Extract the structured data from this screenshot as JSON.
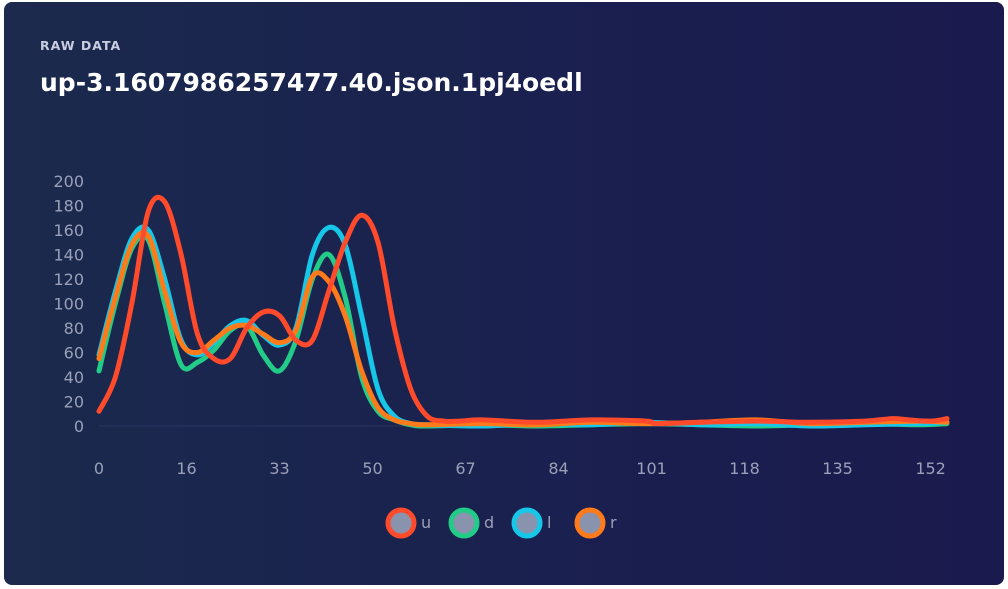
{
  "header": {
    "eyebrow": "RAW DATA",
    "title": "up-3.1607986257477.40.json.1pj4oedl"
  },
  "chart_data": {
    "type": "line",
    "title": "up-3.1607986257477.40.json.1pj4oedl",
    "xlabel": "",
    "ylabel": "",
    "xlim": [
      0,
      155
    ],
    "ylim": [
      0,
      200
    ],
    "x_ticks": [
      0,
      16,
      33,
      50,
      67,
      84,
      101,
      118,
      135,
      152
    ],
    "y_ticks": [
      0,
      20,
      40,
      60,
      80,
      100,
      120,
      140,
      160,
      180,
      200
    ],
    "grid": false,
    "legend": "bottom-center",
    "series": [
      {
        "name": "u",
        "color": "#ff4b2b",
        "points": [
          [
            0,
            12
          ],
          [
            3,
            40
          ],
          [
            6,
            100
          ],
          [
            9,
            175
          ],
          [
            12,
            183
          ],
          [
            15,
            140
          ],
          [
            18,
            75
          ],
          [
            21,
            55
          ],
          [
            24,
            55
          ],
          [
            27,
            80
          ],
          [
            30,
            93
          ],
          [
            33,
            90
          ],
          [
            36,
            70
          ],
          [
            39,
            70
          ],
          [
            42,
            110
          ],
          [
            45,
            150
          ],
          [
            48,
            172
          ],
          [
            51,
            150
          ],
          [
            54,
            80
          ],
          [
            57,
            30
          ],
          [
            60,
            8
          ],
          [
            63,
            4
          ],
          [
            66,
            4
          ],
          [
            70,
            5
          ],
          [
            80,
            3
          ],
          [
            90,
            5
          ],
          [
            100,
            4
          ],
          [
            102,
            2
          ],
          [
            110,
            3
          ],
          [
            120,
            4
          ],
          [
            130,
            3
          ],
          [
            140,
            4
          ],
          [
            145,
            6
          ],
          [
            148,
            5
          ],
          [
            152,
            4
          ],
          [
            155,
            6
          ]
        ]
      },
      {
        "name": "d",
        "color": "#22cc88",
        "points": [
          [
            0,
            45
          ],
          [
            3,
            100
          ],
          [
            6,
            145
          ],
          [
            9,
            152
          ],
          [
            12,
            100
          ],
          [
            15,
            50
          ],
          [
            18,
            52
          ],
          [
            21,
            62
          ],
          [
            24,
            78
          ],
          [
            27,
            82
          ],
          [
            30,
            58
          ],
          [
            33,
            45
          ],
          [
            36,
            70
          ],
          [
            39,
            120
          ],
          [
            42,
            140
          ],
          [
            45,
            105
          ],
          [
            48,
            40
          ],
          [
            51,
            12
          ],
          [
            54,
            5
          ],
          [
            57,
            1
          ],
          [
            60,
            0
          ],
          [
            70,
            1
          ],
          [
            80,
            0
          ],
          [
            90,
            1
          ],
          [
            100,
            2
          ],
          [
            110,
            1
          ],
          [
            120,
            0
          ],
          [
            130,
            1
          ],
          [
            140,
            2
          ],
          [
            150,
            1
          ],
          [
            155,
            2
          ]
        ]
      },
      {
        "name": "l",
        "color": "#16c7e8",
        "points": [
          [
            0,
            58
          ],
          [
            3,
            110
          ],
          [
            6,
            153
          ],
          [
            9,
            160
          ],
          [
            12,
            120
          ],
          [
            15,
            70
          ],
          [
            18,
            58
          ],
          [
            21,
            68
          ],
          [
            24,
            82
          ],
          [
            27,
            86
          ],
          [
            30,
            74
          ],
          [
            33,
            66
          ],
          [
            36,
            80
          ],
          [
            39,
            140
          ],
          [
            42,
            162
          ],
          [
            45,
            148
          ],
          [
            48,
            90
          ],
          [
            51,
            30
          ],
          [
            54,
            8
          ],
          [
            57,
            2
          ],
          [
            60,
            1
          ],
          [
            70,
            0
          ],
          [
            80,
            2
          ],
          [
            90,
            1
          ],
          [
            100,
            3
          ],
          [
            110,
            1
          ],
          [
            120,
            2
          ],
          [
            130,
            0
          ],
          [
            140,
            1
          ],
          [
            150,
            2
          ],
          [
            155,
            3
          ]
        ]
      },
      {
        "name": "r",
        "color": "#ff7a1a",
        "points": [
          [
            0,
            55
          ],
          [
            3,
            105
          ],
          [
            6,
            148
          ],
          [
            9,
            155
          ],
          [
            12,
            110
          ],
          [
            15,
            68
          ],
          [
            18,
            60
          ],
          [
            21,
            70
          ],
          [
            24,
            80
          ],
          [
            27,
            82
          ],
          [
            30,
            75
          ],
          [
            33,
            68
          ],
          [
            36,
            78
          ],
          [
            39,
            122
          ],
          [
            42,
            118
          ],
          [
            45,
            90
          ],
          [
            48,
            45
          ],
          [
            51,
            15
          ],
          [
            54,
            5
          ],
          [
            57,
            2
          ],
          [
            60,
            1
          ],
          [
            70,
            2
          ],
          [
            80,
            1
          ],
          [
            90,
            3
          ],
          [
            100,
            2
          ],
          [
            110,
            3
          ],
          [
            120,
            5
          ],
          [
            130,
            2
          ],
          [
            140,
            3
          ],
          [
            150,
            4
          ],
          [
            155,
            3
          ]
        ]
      }
    ]
  }
}
